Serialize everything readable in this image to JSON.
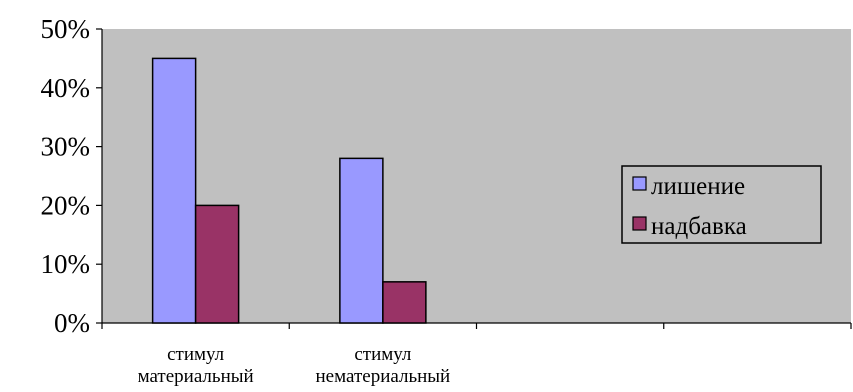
{
  "chart_data": {
    "type": "bar",
    "categories": [
      [
        "стимул",
        "материальный"
      ],
      [
        "стимул",
        "нематериальный"
      ],
      [
        "",
        ""
      ],
      [
        "",
        ""
      ]
    ],
    "series": [
      {
        "name": "лишение",
        "values": [
          0.45,
          0.28,
          null,
          null
        ],
        "color": "#9999ff"
      },
      {
        "name": "надбавка",
        "values": [
          0.2,
          0.07,
          null,
          null
        ],
        "color": "#993366"
      }
    ],
    "ylim": [
      0,
      0.5
    ],
    "yticks": [
      0,
      0.1,
      0.2,
      0.3,
      0.4,
      0.5
    ],
    "ytick_labels": [
      "0%",
      "10%",
      "20%",
      "30%",
      "40%",
      "50%"
    ],
    "plot_background": "#c0c0c0",
    "grid": false,
    "legend_position": "right"
  }
}
